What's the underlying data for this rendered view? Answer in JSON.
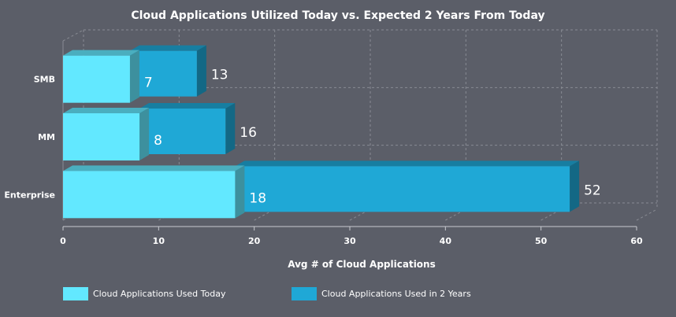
{
  "colors": {
    "background": "#5b5e68",
    "today": "#62e8ff",
    "two_years": "#1fa8d6",
    "grid": "#888b93",
    "text": "#ffffff"
  },
  "chart_data": {
    "type": "bar",
    "orientation": "horizontal",
    "title": "Cloud Applications Utilized Today vs. Expected 2 Years From Today",
    "xlabel": "Avg # of Cloud Applications",
    "ylabel": "",
    "categories": [
      "SMB",
      "MM",
      "Enterprise"
    ],
    "series": [
      {
        "name": "Cloud Applications Used Today",
        "values": [
          7,
          8,
          18
        ]
      },
      {
        "name": "Cloud Applications Used in 2 Years",
        "values": [
          13,
          16,
          52
        ]
      }
    ],
    "xlim": [
      0,
      60
    ],
    "xticks": [
      0,
      10,
      20,
      30,
      40,
      50,
      60
    ],
    "grid": true,
    "legend_position": "bottom",
    "style": "3d"
  }
}
